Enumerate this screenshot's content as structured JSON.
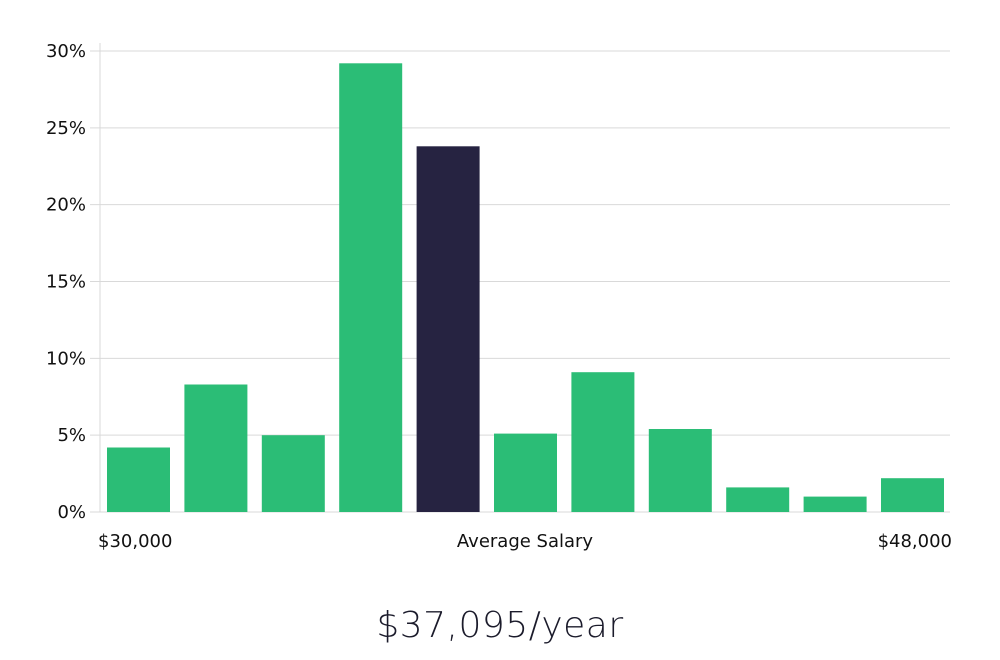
{
  "chart_data": {
    "type": "bar",
    "categories": [
      "1",
      "2",
      "3",
      "4",
      "5",
      "6",
      "7",
      "8",
      "9",
      "10",
      "11"
    ],
    "values": [
      4.2,
      8.3,
      5.0,
      29.2,
      23.8,
      5.1,
      9.1,
      5.4,
      1.6,
      1.0,
      2.2
    ],
    "highlight_index": 4,
    "ylim": [
      0,
      30
    ],
    "yticks": [
      0,
      5,
      10,
      15,
      20,
      25,
      30
    ],
    "ytick_labels": [
      "0%",
      "5%",
      "10%",
      "15%",
      "20%",
      "25%",
      "30%"
    ],
    "x_min_label": "$30,000",
    "x_center_label": "Average Salary",
    "x_max_label": "$48,000",
    "colors": {
      "bar": "#2bbd76",
      "highlight": "#262341"
    }
  },
  "summary": {
    "salary": "$37,095/year"
  }
}
